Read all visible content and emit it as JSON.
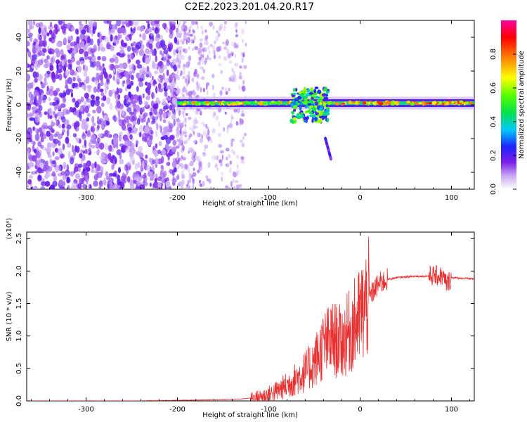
{
  "title": "C2E2.2023.201.04.20.R17",
  "chart_data": [
    {
      "type": "heatmap",
      "xlabel": "Height of straight line (km)",
      "ylabel": "Frequency (Hz)",
      "xlim": [
        -365,
        125
      ],
      "ylim": [
        -50,
        50
      ],
      "x_ticks": [
        -300,
        -200,
        -100,
        0,
        100
      ],
      "y_ticks": [
        -40,
        -20,
        0,
        20,
        40
      ],
      "colorbar": {
        "label": "Normalized spectral amplitude",
        "range": [
          0,
          1
        ],
        "ticks": [
          "0.0",
          "0.2",
          "0.4",
          "0.6",
          "0.8"
        ],
        "colors": [
          "#ffffff",
          "#c9a8f5",
          "#7a1fe6",
          "#2020ff",
          "#00c8ff",
          "#00e050",
          "#50ff00",
          "#ffff00",
          "#ff8000",
          "#ff0000",
          "#ff00a0"
        ]
      },
      "regions": [
        {
          "name": "broadband noise",
          "x_range": [
            -365,
            -200
          ],
          "y_range": [
            -50,
            50
          ],
          "amplitude": 0.12
        },
        {
          "name": "decaying noise",
          "x_range": [
            -200,
            -125
          ],
          "y_range": [
            -50,
            50
          ],
          "amplitude": 0.05
        },
        {
          "name": "carrier line",
          "x_range": [
            -200,
            125
          ],
          "freq_hz": 1,
          "amplitude": 0.6
        },
        {
          "name": "scattered feature",
          "x_range": [
            -75,
            -35
          ],
          "y_range": [
            -10,
            10
          ],
          "amplitude": 0.5
        },
        {
          "name": "drift trail",
          "x_range": [
            -38,
            -32
          ],
          "y_range": [
            -32,
            -20
          ],
          "amplitude": 0.3
        }
      ]
    },
    {
      "type": "line",
      "xlabel": "Height of straight line (km)",
      "ylabel": "SNR (10 * v/v)",
      "multiplier_label": "(x10⁴)",
      "xlim": [
        -365,
        125
      ],
      "ylim": [
        0,
        2.6
      ],
      "x_ticks": [
        -300,
        -200,
        -100,
        0,
        100
      ],
      "y_ticks": [
        "0.0",
        "0.5",
        "1.0",
        "1.5",
        "2.0",
        "2.5"
      ],
      "line_color": "#e83030",
      "series": [
        {
          "x": [
            -365,
            -300,
            -250,
            -200,
            -150,
            -130,
            -110,
            -100,
            -90,
            -80,
            -70,
            -60,
            -50,
            -40,
            -30,
            -20,
            -10,
            0,
            10,
            20,
            30,
            40,
            50,
            60,
            70,
            80,
            90,
            95,
            100,
            110,
            125
          ],
          "y": [
            0.0,
            0.0,
            0.0,
            0.01,
            0.02,
            0.03,
            0.06,
            0.1,
            0.16,
            0.24,
            0.34,
            0.45,
            0.6,
            0.85,
            0.95,
            0.9,
            1.1,
            1.3,
            1.6,
            1.8,
            1.87,
            1.9,
            1.91,
            1.92,
            1.92,
            1.93,
            1.92,
            1.8,
            1.9,
            1.89,
            1.88
          ]
        }
      ]
    }
  ]
}
